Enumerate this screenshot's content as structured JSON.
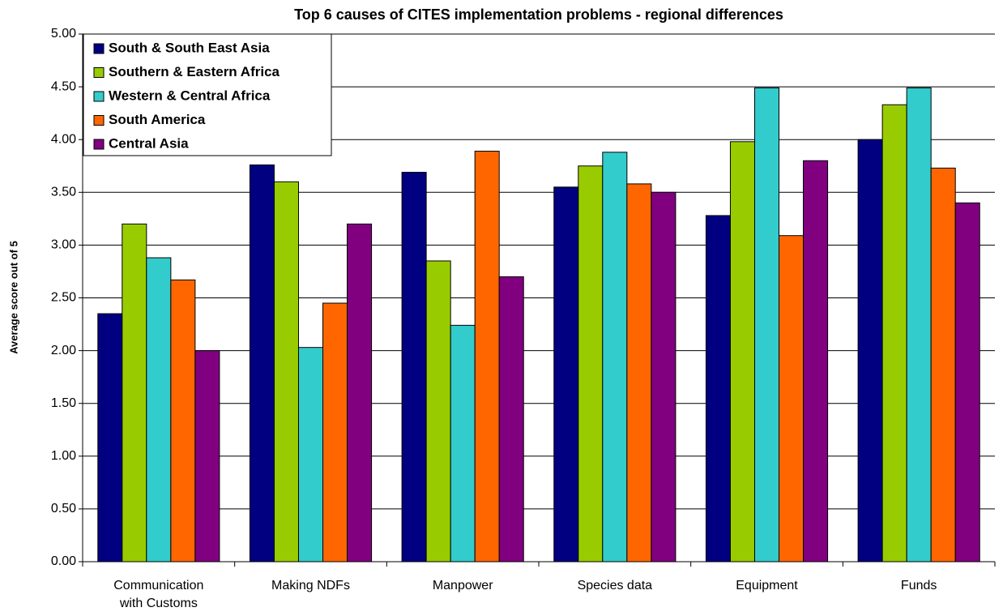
{
  "chart_data": {
    "type": "bar",
    "title": "Top 6 causes of CITES implementation problems - regional differences",
    "y_label": "Average score out of 5",
    "categories": [
      "Communication with Customs",
      "Making NDFs",
      "Manpower",
      "Species data",
      "Equipment",
      "Funds"
    ],
    "series": [
      {
        "name": "South & South East Asia",
        "color": "#000080",
        "values": [
          2.35,
          3.76,
          3.69,
          3.55,
          3.28,
          4.0
        ]
      },
      {
        "name": "Southern & Eastern Africa",
        "color": "#99cc00",
        "values": [
          3.2,
          3.6,
          2.85,
          3.75,
          3.98,
          4.33
        ]
      },
      {
        "name": "Western & Central Africa",
        "color": "#33cccc",
        "values": [
          2.88,
          2.03,
          2.24,
          3.88,
          4.49,
          4.49
        ]
      },
      {
        "name": "South America",
        "color": "#ff6600",
        "values": [
          2.67,
          2.45,
          3.89,
          3.58,
          3.09,
          3.73
        ]
      },
      {
        "name": "Central Asia",
        "color": "#800080",
        "values": [
          2.0,
          3.2,
          2.7,
          3.5,
          3.8,
          3.4
        ]
      }
    ],
    "ylim": [
      0,
      5
    ],
    "yticks": [
      {
        "value": 0,
        "label": "0.00"
      },
      {
        "value": 0.5,
        "label": "0.50"
      },
      {
        "value": 1,
        "label": "1.00"
      },
      {
        "value": 1.5,
        "label": "1.50"
      },
      {
        "value": 2,
        "label": "2.00"
      },
      {
        "value": 2.5,
        "label": "2.50"
      },
      {
        "value": 3,
        "label": "3.00"
      },
      {
        "value": 3.5,
        "label": "3.50"
      },
      {
        "value": 4,
        "label": "4.00"
      },
      {
        "value": 4.5,
        "label": "4.50"
      },
      {
        "value": 5,
        "label": "5.00"
      }
    ],
    "grid": true,
    "legend": "upper left"
  }
}
